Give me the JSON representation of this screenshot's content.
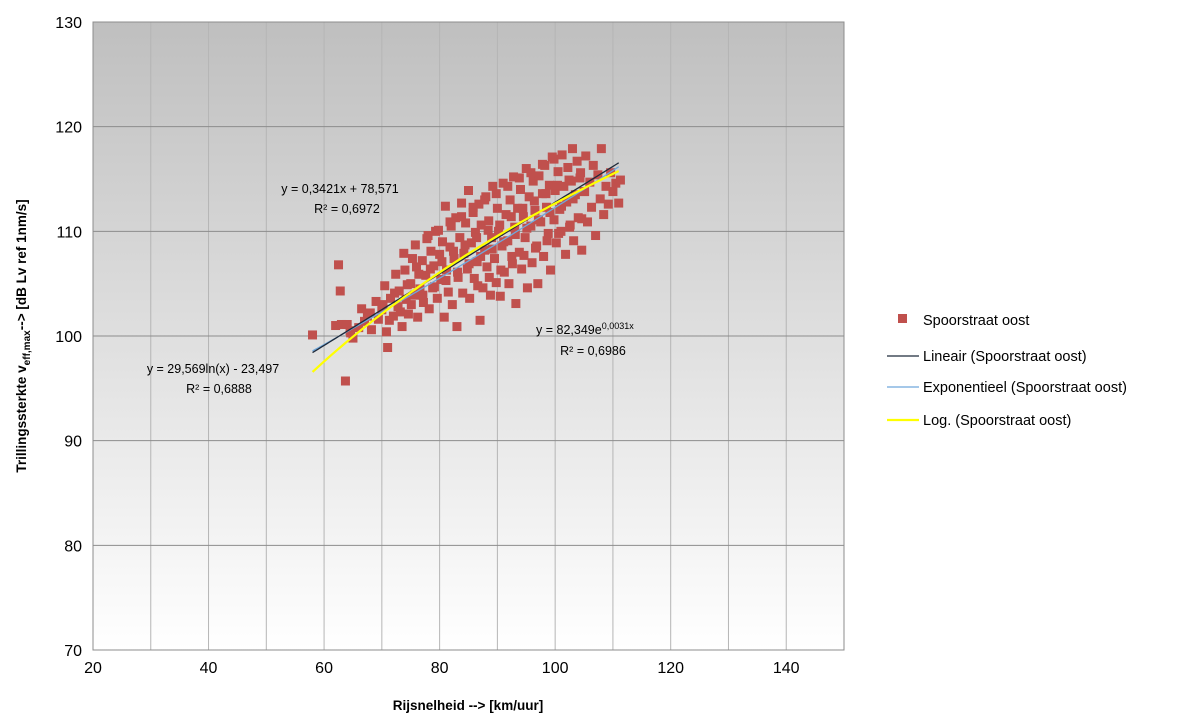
{
  "chart_data": {
    "type": "scatter",
    "xlabel": "Rijsnelheid --> [km/uur]",
    "ylabel": {
      "prefix": "Trillingssterkte v",
      "subscript": "eff,max",
      "suffix": "--> [dB Lv ref 1nm/s]"
    },
    "xlim": [
      20,
      150
    ],
    "ylim": [
      70,
      130
    ],
    "x_ticks": [
      20,
      40,
      60,
      80,
      100,
      120,
      140
    ],
    "y_ticks": [
      70,
      80,
      90,
      100,
      110,
      120,
      130
    ],
    "grid": true,
    "legend_position": "right",
    "background": "gradient-gray-top-to-white-bottom",
    "series": [
      {
        "name": "Spoorstraat oost",
        "kind": "scatter",
        "marker": "square",
        "color": "#c0504d",
        "points": [
          [
            58,
            100.1
          ],
          [
            62,
            101.0
          ],
          [
            62.5,
            106.8
          ],
          [
            62.8,
            104.3
          ],
          [
            63,
            101.1
          ],
          [
            63.7,
            95.7
          ],
          [
            64,
            101.1
          ],
          [
            64.6,
            100.3
          ],
          [
            65,
            99.8
          ],
          [
            66,
            100.8
          ],
          [
            66.5,
            102.6
          ],
          [
            67,
            101.4
          ],
          [
            68,
            102.2
          ],
          [
            68.2,
            100.6
          ],
          [
            69,
            103.3
          ],
          [
            69.4,
            101.6
          ],
          [
            70,
            102.5
          ],
          [
            70.5,
            104.8
          ],
          [
            70.8,
            100.4
          ],
          [
            71,
            98.9
          ],
          [
            71.5,
            103.6
          ],
          [
            72,
            101.9
          ],
          [
            72.4,
            105.9
          ],
          [
            72.8,
            102.8
          ],
          [
            73,
            104.3
          ],
          [
            73.5,
            100.9
          ],
          [
            74,
            106.3
          ],
          [
            74.2,
            103.5
          ],
          [
            74.6,
            102.1
          ],
          [
            75,
            105.0
          ],
          [
            75.3,
            107.4
          ],
          [
            75.7,
            103.9
          ],
          [
            76,
            106.6
          ],
          [
            76.2,
            101.8
          ],
          [
            76.6,
            104.5
          ],
          [
            77,
            107.2
          ],
          [
            77.2,
            103.2
          ],
          [
            77.6,
            105.8
          ],
          [
            78,
            109.6
          ],
          [
            78.2,
            102.6
          ],
          [
            78.5,
            108.1
          ],
          [
            78.8,
            104.6
          ],
          [
            79,
            106.7
          ],
          [
            79.3,
            110.0
          ],
          [
            79.6,
            103.6
          ],
          [
            80,
            107.8
          ],
          [
            80.2,
            105.4
          ],
          [
            80.5,
            109.0
          ],
          [
            80.8,
            101.8
          ],
          [
            81,
            112.4
          ],
          [
            81.2,
            106.3
          ],
          [
            81.5,
            104.2
          ],
          [
            81.8,
            108.5
          ],
          [
            82,
            110.5
          ],
          [
            82.2,
            103.0
          ],
          [
            82.5,
            107.4
          ],
          [
            82.8,
            111.3
          ],
          [
            83,
            100.9
          ],
          [
            83.2,
            105.6
          ],
          [
            83.5,
            109.4
          ],
          [
            83.8,
            112.7
          ],
          [
            84,
            104.1
          ],
          [
            84.2,
            107.9
          ],
          [
            84.5,
            110.8
          ],
          [
            84.8,
            106.4
          ],
          [
            85,
            113.9
          ],
          [
            85.2,
            103.6
          ],
          [
            85.5,
            108.9
          ],
          [
            85.8,
            111.8
          ],
          [
            86,
            105.5
          ],
          [
            86.2,
            109.9
          ],
          [
            86.5,
            107.1
          ],
          [
            86.8,
            112.6
          ],
          [
            87,
            101.5
          ],
          [
            87.2,
            110.6
          ],
          [
            87.5,
            104.6
          ],
          [
            87.8,
            108.2
          ],
          [
            88,
            113.3
          ],
          [
            88.2,
            106.6
          ],
          [
            88.5,
            111.0
          ],
          [
            88.8,
            103.9
          ],
          [
            89,
            109.4
          ],
          [
            89.2,
            114.3
          ],
          [
            89.5,
            107.4
          ],
          [
            89.8,
            105.1
          ],
          [
            90,
            112.2
          ],
          [
            90.2,
            110.0
          ],
          [
            90.5,
            103.8
          ],
          [
            90.8,
            108.6
          ],
          [
            91,
            114.6
          ],
          [
            91.2,
            106.1
          ],
          [
            91.5,
            111.6
          ],
          [
            91.8,
            109.1
          ],
          [
            92,
            105.0
          ],
          [
            92.2,
            113.0
          ],
          [
            92.5,
            107.6
          ],
          [
            92.8,
            115.2
          ],
          [
            93,
            110.4
          ],
          [
            93.2,
            103.1
          ],
          [
            93.5,
            112.2
          ],
          [
            93.8,
            108.0
          ],
          [
            94,
            114.0
          ],
          [
            94.2,
            106.4
          ],
          [
            94.5,
            111.4
          ],
          [
            94.8,
            109.4
          ],
          [
            95,
            116.0
          ],
          [
            95.2,
            104.6
          ],
          [
            95.5,
            113.3
          ],
          [
            95.8,
            110.5
          ],
          [
            96,
            107.0
          ],
          [
            96.2,
            114.8
          ],
          [
            96.5,
            112.0
          ],
          [
            96.8,
            108.6
          ],
          [
            97,
            105.0
          ],
          [
            97.2,
            115.3
          ],
          [
            97.5,
            110.9
          ],
          [
            97.8,
            113.6
          ],
          [
            98,
            107.6
          ],
          [
            98.2,
            116.3
          ],
          [
            98.5,
            112.3
          ],
          [
            98.8,
            109.8
          ],
          [
            99,
            114.4
          ],
          [
            99.2,
            106.3
          ],
          [
            99.5,
            117.1
          ],
          [
            99.8,
            111.1
          ],
          [
            100,
            113.9
          ],
          [
            100.2,
            108.9
          ],
          [
            100.5,
            115.7
          ],
          [
            100.8,
            112.1
          ],
          [
            101,
            110.0
          ],
          [
            101.2,
            117.3
          ],
          [
            101.5,
            114.3
          ],
          [
            101.8,
            107.8
          ],
          [
            102,
            112.8
          ],
          [
            102.2,
            116.1
          ],
          [
            102.5,
            110.4
          ],
          [
            102.8,
            114.8
          ],
          [
            103,
            117.9
          ],
          [
            103.2,
            109.1
          ],
          [
            103.5,
            113.5
          ],
          [
            103.8,
            116.7
          ],
          [
            104,
            111.3
          ],
          [
            104.3,
            115.1
          ],
          [
            104.6,
            108.2
          ],
          [
            105,
            113.8
          ],
          [
            105.3,
            117.2
          ],
          [
            105.6,
            110.9
          ],
          [
            106,
            114.7
          ],
          [
            106.3,
            112.3
          ],
          [
            106.6,
            116.3
          ],
          [
            107,
            109.6
          ],
          [
            107.4,
            115.4
          ],
          [
            107.8,
            113.1
          ],
          [
            108,
            117.9
          ],
          [
            108.4,
            111.6
          ],
          [
            108.8,
            114.3
          ],
          [
            109.2,
            112.6
          ],
          [
            109.6,
            115.6
          ],
          [
            110,
            113.8
          ],
          [
            110.5,
            114.6
          ],
          [
            111,
            112.7
          ],
          [
            111.3,
            114.9
          ],
          [
            64.5,
            100.5
          ],
          [
            67.5,
            101.9
          ],
          [
            70.2,
            103.0
          ],
          [
            72.2,
            104.1
          ],
          [
            74.4,
            104.9
          ],
          [
            76.4,
            105.9
          ],
          [
            78.4,
            106.4
          ],
          [
            80.4,
            107.1
          ],
          [
            82.4,
            108.1
          ],
          [
            84.4,
            108.7
          ],
          [
            86.4,
            109.4
          ],
          [
            88.4,
            110.1
          ],
          [
            90.4,
            110.6
          ],
          [
            92.4,
            111.4
          ],
          [
            94.4,
            112.2
          ],
          [
            96.4,
            112.9
          ],
          [
            98.4,
            113.6
          ],
          [
            100.4,
            114.4
          ],
          [
            102.4,
            114.9
          ],
          [
            104.4,
            115.6
          ],
          [
            71.3,
            101.5
          ],
          [
            73.2,
            102.3
          ],
          [
            75.1,
            103.0
          ],
          [
            77.1,
            103.9
          ],
          [
            79.1,
            104.7
          ],
          [
            81.1,
            105.3
          ],
          [
            83.1,
            106.1
          ],
          [
            85.1,
            106.9
          ],
          [
            87.1,
            107.6
          ],
          [
            89.1,
            108.3
          ],
          [
            91.1,
            109.0
          ],
          [
            93.1,
            109.7
          ],
          [
            95.1,
            110.3
          ],
          [
            97.1,
            111.1
          ],
          [
            99.1,
            111.8
          ],
          [
            101.1,
            112.4
          ],
          [
            103.1,
            113.1
          ],
          [
            105.1,
            113.8
          ],
          [
            73.8,
            107.9
          ],
          [
            75.8,
            108.7
          ],
          [
            77.8,
            109.3
          ],
          [
            79.8,
            110.1
          ],
          [
            81.8,
            110.9
          ],
          [
            83.8,
            111.4
          ],
          [
            85.8,
            112.3
          ],
          [
            87.8,
            113.0
          ],
          [
            89.8,
            113.6
          ],
          [
            91.8,
            114.3
          ],
          [
            93.8,
            115.1
          ],
          [
            95.8,
            115.6
          ],
          [
            97.8,
            116.4
          ],
          [
            99.8,
            116.9
          ],
          [
            86.6,
            104.8
          ],
          [
            88.6,
            105.6
          ],
          [
            90.6,
            106.3
          ],
          [
            92.6,
            106.9
          ],
          [
            94.6,
            107.7
          ],
          [
            96.6,
            108.4
          ],
          [
            98.6,
            109.1
          ],
          [
            100.6,
            109.8
          ],
          [
            102.6,
            110.6
          ],
          [
            104.6,
            111.2
          ]
        ]
      },
      {
        "name": "Lineair (Spoorstraat oost)",
        "kind": "trend",
        "model": "linear",
        "a": 0.3421,
        "b": 78.571,
        "x_range": [
          58,
          111
        ],
        "color": "#1f2a3a",
        "equation": "y = 0,3421x + 78,571",
        "r2": "R² = 0,6972"
      },
      {
        "name": "Exponentieel (Spoorstraat oost)",
        "kind": "trend",
        "model": "exponential",
        "a": 82.349,
        "b": 0.0031,
        "x_range": [
          58,
          111
        ],
        "color": "#6fa8dc",
        "equation_base": "y = 82,349e",
        "equation_exp": "0,0031x",
        "r2": "R² = 0,6986"
      },
      {
        "name": "Log. (Spoorstraat oost)",
        "kind": "trend",
        "model": "log",
        "a": 29.569,
        "b": -23.497,
        "x_range": [
          58,
          111
        ],
        "color": "#ffff00",
        "equation": "y = 29,569ln(x) - 23,497",
        "r2": "R² = 0,6888"
      }
    ]
  }
}
